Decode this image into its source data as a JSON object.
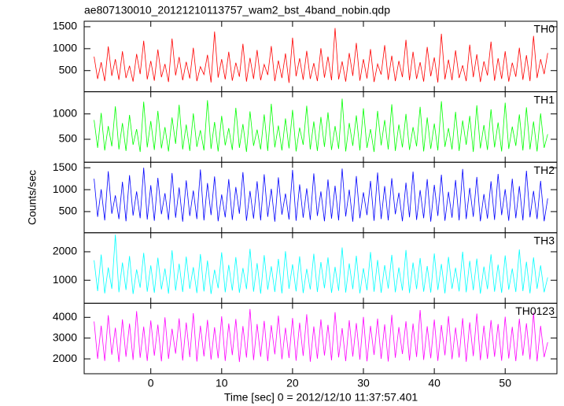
{
  "chart_data": {
    "type": "line",
    "title": "ae807130010_20121210113757_wam2_bst_4band_nobin.qdp",
    "x_label": "Time [sec] 0 = 2012/12/10 11:37:57.401",
    "y_label": "Counts/sec",
    "xlim": [
      -9.4,
      57.3
    ],
    "xticks": [
      0,
      10,
      20,
      30,
      40,
      50
    ],
    "x": [
      -8,
      -7.5,
      -7,
      -6.5,
      -6,
      -5.5,
      -5,
      -4.5,
      -4,
      -3.5,
      -3,
      -2.5,
      -2,
      -1.5,
      -1,
      -0.5,
      0,
      0.5,
      1,
      1.5,
      2,
      2.5,
      3,
      3.5,
      4,
      4.5,
      5,
      5.5,
      6,
      6.5,
      7,
      7.5,
      8,
      8.5,
      9,
      9.5,
      10,
      10.5,
      11,
      11.5,
      12,
      12.5,
      13,
      13.5,
      14,
      14.5,
      15,
      15.5,
      16,
      16.5,
      17,
      17.5,
      18,
      18.5,
      19,
      19.5,
      20,
      20.5,
      21,
      21.5,
      22,
      22.5,
      23,
      23.5,
      24,
      24.5,
      25,
      25.5,
      26,
      26.5,
      27,
      27.5,
      28,
      28.5,
      29,
      29.5,
      30,
      30.5,
      31,
      31.5,
      32,
      32.5,
      33,
      33.5,
      34,
      34.5,
      35,
      35.5,
      36,
      36.5,
      37,
      37.5,
      38,
      38.5,
      39,
      39.5,
      40,
      40.5,
      41,
      41.5,
      42,
      42.5,
      43,
      43.5,
      44,
      44.5,
      45,
      45.5,
      46,
      46.5,
      47,
      47.5,
      48,
      48.5,
      49,
      49.5,
      50,
      50.5,
      51,
      51.5,
      52,
      52.5,
      53,
      53.5,
      54,
      54.5,
      55,
      55.5,
      56
    ],
    "series": [
      {
        "name": "TH0",
        "color": "#ff0000",
        "ylim": [
          18,
          1625
        ],
        "yticks": [
          500,
          1000,
          1500
        ],
        "values": [
          820,
          310,
          690,
          260,
          1050,
          380,
          760,
          290,
          940,
          330,
          610,
          250,
          880,
          420,
          1180,
          300,
          720,
          270,
          980,
          350,
          650,
          240,
          1230,
          390,
          810,
          280,
          700,
          320,
          1020,
          260,
          590,
          410,
          860,
          230,
          1390,
          340,
          760,
          300,
          930,
          270,
          680,
          360,
          1110,
          250,
          790,
          310,
          970,
          280,
          640,
          400,
          1060,
          260,
          730,
          330,
          890,
          220,
          1250,
          370,
          780,
          290,
          950,
          310,
          670,
          260,
          1010,
          340,
          820,
          280,
          1470,
          300,
          710,
          250,
          900,
          380,
          1130,
          270,
          760,
          320,
          990,
          240,
          650,
          410,
          1080,
          290,
          840,
          260,
          720,
          350,
          1200,
          280,
          930,
          310,
          690,
          250,
          1040,
          370,
          800,
          230,
          1340,
          300,
          750,
          280,
          960,
          330,
          620,
          260,
          1090,
          350,
          870,
          240,
          710,
          390,
          1160,
          270,
          780,
          310,
          940,
          250,
          680,
          360,
          1020,
          290,
          850,
          260,
          1290,
          330,
          760,
          420,
          900
        ]
      },
      {
        "name": "TH1",
        "color": "#00ff00",
        "ylim": [
          47,
          1437
        ],
        "yticks": [
          500,
          1000
        ],
        "values": [
          880,
          330,
          1020,
          280,
          760,
          360,
          1150,
          300,
          820,
          270,
          980,
          390,
          700,
          250,
          1240,
          340,
          860,
          290,
          1060,
          320,
          740,
          260,
          930,
          410,
          1180,
          300,
          790,
          270,
          1010,
          350,
          680,
          280,
          1270,
          310,
          840,
          260,
          960,
          380,
          720,
          290,
          1120,
          330,
          800,
          250,
          1050,
          370,
          690,
          300,
          990,
          270,
          1200,
          340,
          770,
          280,
          910,
          320,
          1080,
          260,
          730,
          390,
          1160,
          300,
          850,
          270,
          940,
          350,
          1030,
          290,
          760,
          310,
          1300,
          260,
          820,
          370,
          970,
          280,
          1110,
          330,
          700,
          250,
          1060,
          380,
          880,
          300,
          1190,
          270,
          790,
          340,
          1000,
          290,
          740,
          360,
          1140,
          260,
          930,
          310,
          810,
          280,
          1250,
          350,
          720,
          300,
          1040,
          270,
          870,
          390,
          960,
          250,
          1170,
          320,
          780,
          290,
          1090,
          340,
          830,
          260,
          1220,
          310,
          750,
          370,
          990,
          280,
          1130,
          300,
          850,
          260,
          1010,
          330,
          600
        ]
      },
      {
        "name": "TH2",
        "color": "#0000ff",
        "ylim": [
          18,
          1625
        ],
        "yticks": [
          500,
          1000,
          1500
        ],
        "values": [
          1250,
          380,
          1010,
          300,
          1420,
          450,
          870,
          330,
          1180,
          280,
          1330,
          410,
          960,
          350,
          1500,
          320,
          1100,
          290,
          1270,
          440,
          920,
          310,
          1380,
          360,
          1050,
          270,
          1210,
          400,
          980,
          330,
          1460,
          300,
          1150,
          420,
          1300,
          280,
          890,
          370,
          1240,
          310,
          1060,
          450,
          1400,
          290,
          970,
          340,
          1190,
          300,
          1350,
          380,
          1020,
          270,
          1280,
          430,
          910,
          320,
          1450,
          290,
          1120,
          360,
          1030,
          310,
          1370,
          400,
          960,
          280,
          1230,
          340,
          1090,
          300,
          1480,
          390,
          1000,
          270,
          1310,
          350,
          940,
          420,
          1200,
          290,
          1390,
          330,
          1080,
          300,
          1260,
          440,
          930,
          280,
          1160,
          370,
          1410,
          310,
          990,
          350,
          1240,
          270,
          1110,
          400,
          1340,
          290,
          950,
          360,
          1220,
          300,
          1470,
          330,
          1040,
          380,
          1290,
          280,
          900,
          340,
          1190,
          310,
          1360,
          420,
          1010,
          290,
          1250,
          350,
          1080,
          300,
          1430,
          370,
          970,
          330,
          1200,
          280,
          800
        ]
      },
      {
        "name": "TH3",
        "color": "#00ffff",
        "ylim": [
          194,
          2667
        ],
        "yticks": [
          1000,
          2000
        ],
        "values": [
          1700,
          620,
          1900,
          540,
          1450,
          700,
          2600,
          580,
          1620,
          660,
          1850,
          520,
          1380,
          740,
          1960,
          600,
          1520,
          560,
          1790,
          680,
          1410,
          530,
          2050,
          640,
          1580,
          590,
          1830,
          700,
          1460,
          550,
          1920,
          610,
          1690,
          520,
          1370,
          720,
          1980,
          580,
          1540,
          640,
          1810,
          560,
          1430,
          690,
          2100,
          600,
          1600,
          530,
          1880,
          670,
          1490,
          590,
          1750,
          540,
          2020,
          700,
          1560,
          610,
          1840,
          550,
          1400,
          680,
          1930,
          590,
          1640,
          720,
          1800,
          560,
          1470,
          630,
          2150,
          570,
          1590,
          690,
          1860,
          540,
          1420,
          650,
          1990,
          600,
          1710,
          560,
          1530,
          710,
          1890,
          580,
          1450,
          640,
          2060,
          550,
          1620,
          690,
          1780,
          600,
          1500,
          570,
          1940,
          660,
          1570,
          540,
          1820,
          700,
          1440,
          610,
          2000,
          580,
          1680,
          650,
          1760,
          530,
          1480,
          690,
          1910,
          600,
          1550,
          560,
          1870,
          670,
          1410,
          590,
          2080,
          620,
          1650,
          540,
          1800,
          700,
          1520,
          580,
          1100
        ]
      },
      {
        "name": "TH0123",
        "color": "#ff00ff",
        "ylim": [
          1283,
          4679
        ],
        "yticks": [
          2000,
          3000,
          4000
        ],
        "values": [
          3800,
          2000,
          3600,
          1900,
          4100,
          2200,
          3500,
          1850,
          3900,
          2100,
          3700,
          1950,
          4300,
          2050,
          3550,
          1900,
          3850,
          2150,
          3650,
          1880,
          4000,
          2000,
          3450,
          2250,
          3950,
          1920,
          3750,
          2080,
          4200,
          1870,
          3600,
          2120,
          3880,
          1960,
          3520,
          2030,
          4050,
          1900,
          3700,
          2180,
          3920,
          1850,
          3580,
          2060,
          4400,
          1940,
          3680,
          2100,
          3830,
          1890,
          3620,
          2220,
          4080,
          1980,
          3500,
          2040,
          3970,
          1910,
          3740,
          2140,
          4150,
          1860,
          3560,
          2010,
          3900,
          2160,
          3640,
          1930,
          4250,
          2070,
          3480,
          1890,
          3860,
          2110,
          3720,
          1960,
          4020,
          1880,
          3590,
          2190,
          3940,
          2000,
          3660,
          1870,
          4120,
          2050,
          3530,
          2230,
          3810,
          1920,
          3700,
          2090,
          4350,
          1950,
          3570,
          2030,
          3890,
          1900,
          3630,
          2170,
          4060,
          1980,
          3510,
          2060,
          3960,
          1860,
          3760,
          2130,
          4180,
          1940,
          3600,
          2000,
          3870,
          2100,
          3680,
          1910,
          4030,
          2020,
          3540,
          1890,
          3930,
          2150,
          3710,
          1970,
          4220,
          1880,
          3590,
          2080,
          2800
        ]
      }
    ]
  }
}
